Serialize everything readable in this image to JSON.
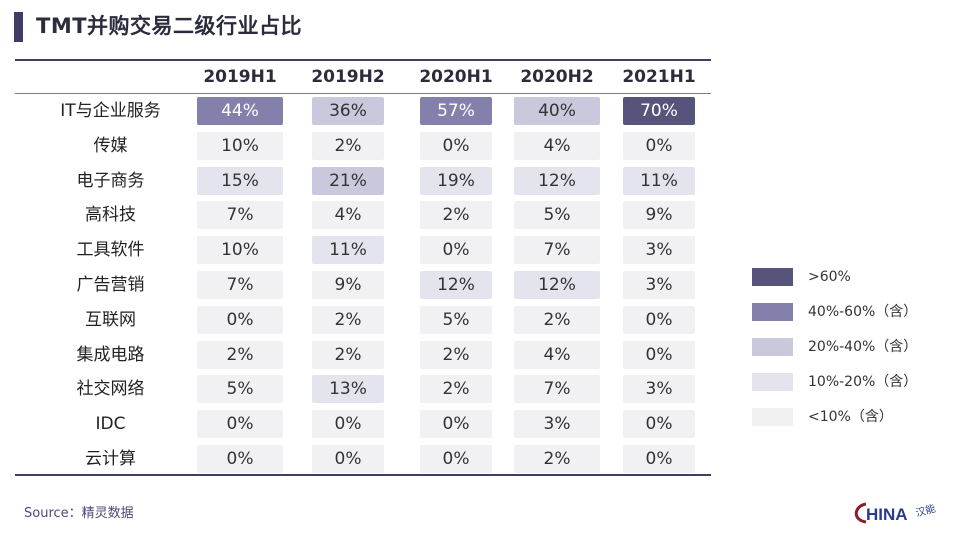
{
  "title": "TMT并购交易二级行业占比",
  "source": "Source：精灵数据",
  "logo": {
    "text": "HINA",
    "mark": "C",
    "sub": "汉能"
  },
  "colors": {
    "gt60": "#56547a",
    "c40to60": "#8381ac",
    "c20to40": "#c9c8dd",
    "c10to20": "#e4e4ef",
    "lt10": "#f1f1f3",
    "text_dark": "#ffffff",
    "text_normal": "#333333"
  },
  "legend": [
    {
      "label": ">60%",
      "color_key": "gt60"
    },
    {
      "label": "40%-60%（含）",
      "color_key": "c40to60"
    },
    {
      "label": "20%-40%（含）",
      "color_key": "c20to40"
    },
    {
      "label": "10%-20%（含）",
      "color_key": "c10to20"
    },
    {
      "label": "<10%（含）",
      "color_key": "lt10"
    }
  ],
  "chart_data": {
    "type": "table",
    "title": "TMT并购交易二级行业占比",
    "columns": [
      "2019H1",
      "2019H2",
      "2020H1",
      "2020H2",
      "2021H1"
    ],
    "rows": [
      {
        "label": "IT与企业服务",
        "values": [
          44,
          36,
          57,
          40,
          70
        ]
      },
      {
        "label": "传媒",
        "values": [
          10,
          2,
          0,
          4,
          0
        ]
      },
      {
        "label": "电子商务",
        "values": [
          15,
          21,
          19,
          12,
          11
        ]
      },
      {
        "label": "高科技",
        "values": [
          7,
          4,
          2,
          5,
          9
        ]
      },
      {
        "label": "工具软件",
        "values": [
          10,
          11,
          0,
          7,
          3
        ]
      },
      {
        "label": "广告营销",
        "values": [
          7,
          9,
          12,
          12,
          3
        ]
      },
      {
        "label": "互联网",
        "values": [
          0,
          2,
          5,
          2,
          0
        ]
      },
      {
        "label": "集成电路",
        "values": [
          2,
          2,
          2,
          4,
          0
        ]
      },
      {
        "label": "社交网络",
        "values": [
          5,
          13,
          2,
          7,
          3
        ]
      },
      {
        "label": "IDC",
        "values": [
          0,
          0,
          0,
          3,
          0
        ]
      },
      {
        "label": "云计算",
        "values": [
          0,
          0,
          0,
          2,
          0
        ]
      }
    ],
    "unit": "%"
  }
}
